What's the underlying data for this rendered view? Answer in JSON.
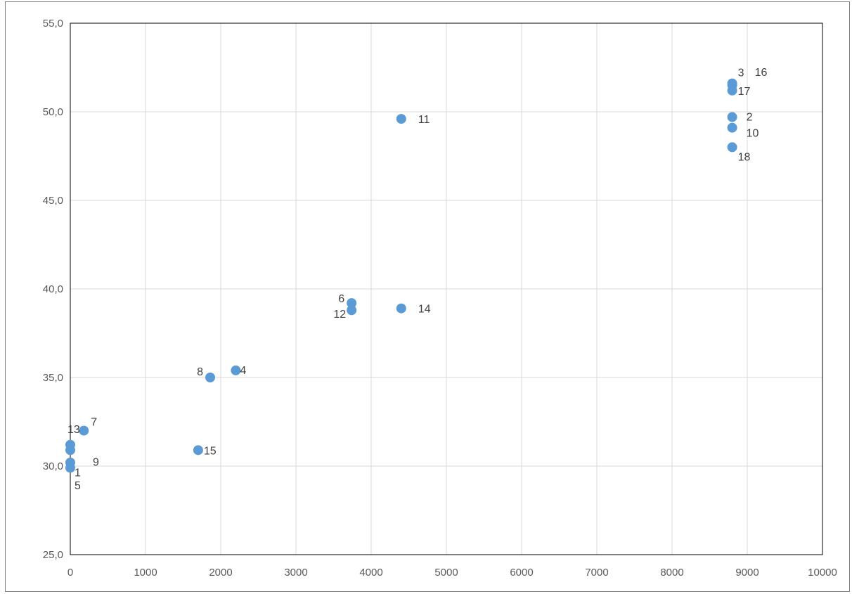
{
  "chart_data": {
    "type": "scatter",
    "title": "",
    "xlabel": "",
    "ylabel": "",
    "xlim": [
      0,
      10000
    ],
    "ylim": [
      25,
      55
    ],
    "x_ticks": [
      0,
      1000,
      2000,
      3000,
      4000,
      5000,
      6000,
      7000,
      8000,
      9000,
      10000
    ],
    "x_tick_labels": [
      "0",
      "1000",
      "2000",
      "3000",
      "4000",
      "5000",
      "6000",
      "7000",
      "8000",
      "9000",
      "10000"
    ],
    "y_ticks": [
      25,
      30,
      35,
      40,
      45,
      50,
      55
    ],
    "y_tick_labels": [
      "25,0",
      "30,0",
      "35,0",
      "40,0",
      "45,0",
      "50,0",
      "55,0"
    ],
    "grid": true,
    "legend": "none",
    "marker_color": "#5b9bd5",
    "points": [
      {
        "label": "1",
        "x": 0,
        "y": 29.9
      },
      {
        "label": "2",
        "x": 8800,
        "y": 49.7
      },
      {
        "label": "3",
        "x": 8800,
        "y": 51.6
      },
      {
        "label": "4",
        "x": 2200,
        "y": 35.4
      },
      {
        "label": "5",
        "x": 0,
        "y": 30.2
      },
      {
        "label": "6",
        "x": 3740,
        "y": 39.2
      },
      {
        "label": "7",
        "x": 180,
        "y": 32.0
      },
      {
        "label": "8",
        "x": 1860,
        "y": 35.0
      },
      {
        "label": "9",
        "x": 0,
        "y": 30.9
      },
      {
        "label": "10",
        "x": 8800,
        "y": 49.1
      },
      {
        "label": "11",
        "x": 4400,
        "y": 49.6
      },
      {
        "label": "12",
        "x": 3740,
        "y": 38.8
      },
      {
        "label": "13",
        "x": 0,
        "y": 31.2
      },
      {
        "label": "14",
        "x": 4400,
        "y": 38.9
      },
      {
        "label": "15",
        "x": 1700,
        "y": 30.9
      },
      {
        "label": "16",
        "x": 8800,
        "y": 51.5
      },
      {
        "label": "17",
        "x": 8800,
        "y": 51.2
      },
      {
        "label": "18",
        "x": 8800,
        "y": 48.0
      }
    ]
  }
}
